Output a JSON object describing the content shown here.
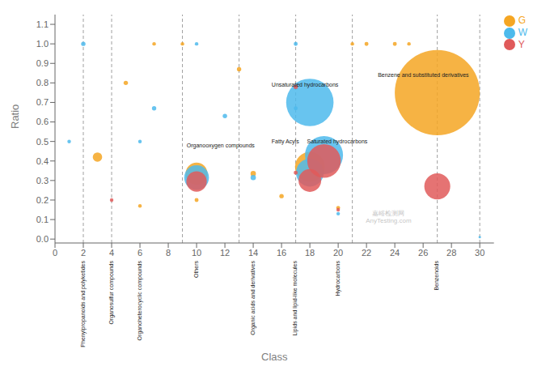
{
  "chart_data": {
    "type": "bubble",
    "xlabel": "Class",
    "ylabel": "Ratio",
    "xlim": [
      0,
      31
    ],
    "ylim": [
      -0.02,
      1.15
    ],
    "xticks": [
      0,
      2,
      4,
      6,
      8,
      10,
      12,
      14,
      16,
      18,
      20,
      22,
      24,
      26,
      28,
      30
    ],
    "yticks": [
      {
        "value": 0,
        "label": "0.0"
      },
      0.1,
      0.2,
      0.3,
      0.4,
      0.5,
      0.6,
      0.7,
      0.8,
      0.9,
      {
        "value": 1.0,
        "label": "1.0"
      },
      1.1
    ],
    "grid": false,
    "legend": "upper right",
    "vlines": [
      2,
      4,
      9,
      13,
      17,
      21,
      27,
      30
    ],
    "x_labels": [
      {
        "x": 2,
        "text": "Phenylpropanoids and polyketides"
      },
      {
        "x": 4,
        "text": "Organosulfur compounds"
      },
      {
        "x": 6,
        "text": "Organoheterocyclic compounds"
      },
      {
        "x": 10,
        "text": "Others"
      },
      {
        "x": 14,
        "text": "Organic acids and derivatives"
      },
      {
        "x": 17,
        "text": "Lipids and lipid-like molecules"
      },
      {
        "x": 20,
        "text": "Hydrocarbons"
      },
      {
        "x": 27,
        "text": "Benzenoids"
      }
    ],
    "annotations": [
      {
        "x": 9.3,
        "y": 0.47,
        "text": "Organooxygen compounds"
      },
      {
        "x": 15.3,
        "y": 0.49,
        "text": "Fatty Acyls"
      },
      {
        "x": 17.8,
        "y": 0.49,
        "text": "Saturated hydrocarbons"
      },
      {
        "x": 15.3,
        "y": 0.78,
        "text": "Unsaturated hydrocarbons"
      },
      {
        "x": 22.8,
        "y": 0.83,
        "text": "Benzene and substituted derivatives"
      }
    ],
    "watermark": "嘉峪检测网\nAnyTesting.com",
    "series": [
      {
        "name": "G",
        "color": "#F5A623",
        "x": [
          3,
          5,
          6,
          7,
          9,
          10,
          10,
          13,
          14,
          16,
          18,
          20,
          21,
          22,
          24,
          25,
          27
        ],
        "y": [
          0.42,
          0.8,
          0.17,
          1.0,
          1.0,
          0.335,
          0.2,
          0.87,
          0.335,
          0.22,
          0.37,
          0.16,
          1.0,
          1.0,
          1.0,
          1.0,
          0.75
        ],
        "size": [
          55,
          12,
          8,
          8,
          8,
          300,
          10,
          12,
          18,
          12,
          550,
          10,
          8,
          10,
          10,
          8,
          4500
        ]
      },
      {
        "name": "W",
        "color": "#4DBAEC",
        "x": [
          2,
          1,
          6,
          7,
          10,
          10,
          12,
          14,
          17,
          17,
          18,
          18,
          19,
          20,
          30
        ],
        "y": [
          1.0,
          0.5,
          0.5,
          0.67,
          1.0,
          0.315,
          0.63,
          0.315,
          1.0,
          0.67,
          0.7,
          0.34,
          0.43,
          0.13,
          0.01
        ],
        "size": [
          12,
          8,
          8,
          12,
          8,
          380,
          12,
          18,
          10,
          10,
          1400,
          480,
          900,
          8,
          4
        ]
      },
      {
        "name": "Y",
        "color": "#E05A5A",
        "x": [
          4,
          10,
          17,
          17,
          18,
          19,
          20,
          27
        ],
        "y": [
          0.2,
          0.295,
          0.78,
          0.34,
          0.3,
          0.4,
          0.15,
          0.27
        ],
        "size": [
          8,
          260,
          12,
          10,
          320,
          700,
          8,
          420
        ]
      }
    ]
  }
}
